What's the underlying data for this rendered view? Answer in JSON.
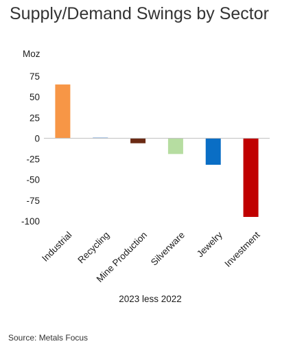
{
  "title": "Supply/Demand Swings by Sector",
  "source": "Source: Metals Focus",
  "chart_data": {
    "type": "bar",
    "categories": [
      "Industrial",
      "Recycling",
      "Mine Production",
      "Silverware",
      "Jewelry",
      "Investment"
    ],
    "values": [
      65,
      1,
      -6,
      -19,
      -32,
      -95
    ],
    "colors": [
      "#F79646",
      "#8DB4E2",
      "#6B2A14",
      "#B6DDA1",
      "#0A6EC5",
      "#C00000"
    ],
    "ylabel": "Moz",
    "xlabel": "2023 less 2022",
    "ylim": [
      -100,
      75
    ],
    "yticks": [
      75,
      50,
      25,
      0,
      -25,
      -50,
      -75,
      -100
    ],
    "ytick_labels": [
      "75",
      "50",
      "25",
      "0",
      "-25",
      "-50",
      "-75",
      "-100"
    ],
    "grid": false,
    "legend": "none"
  }
}
